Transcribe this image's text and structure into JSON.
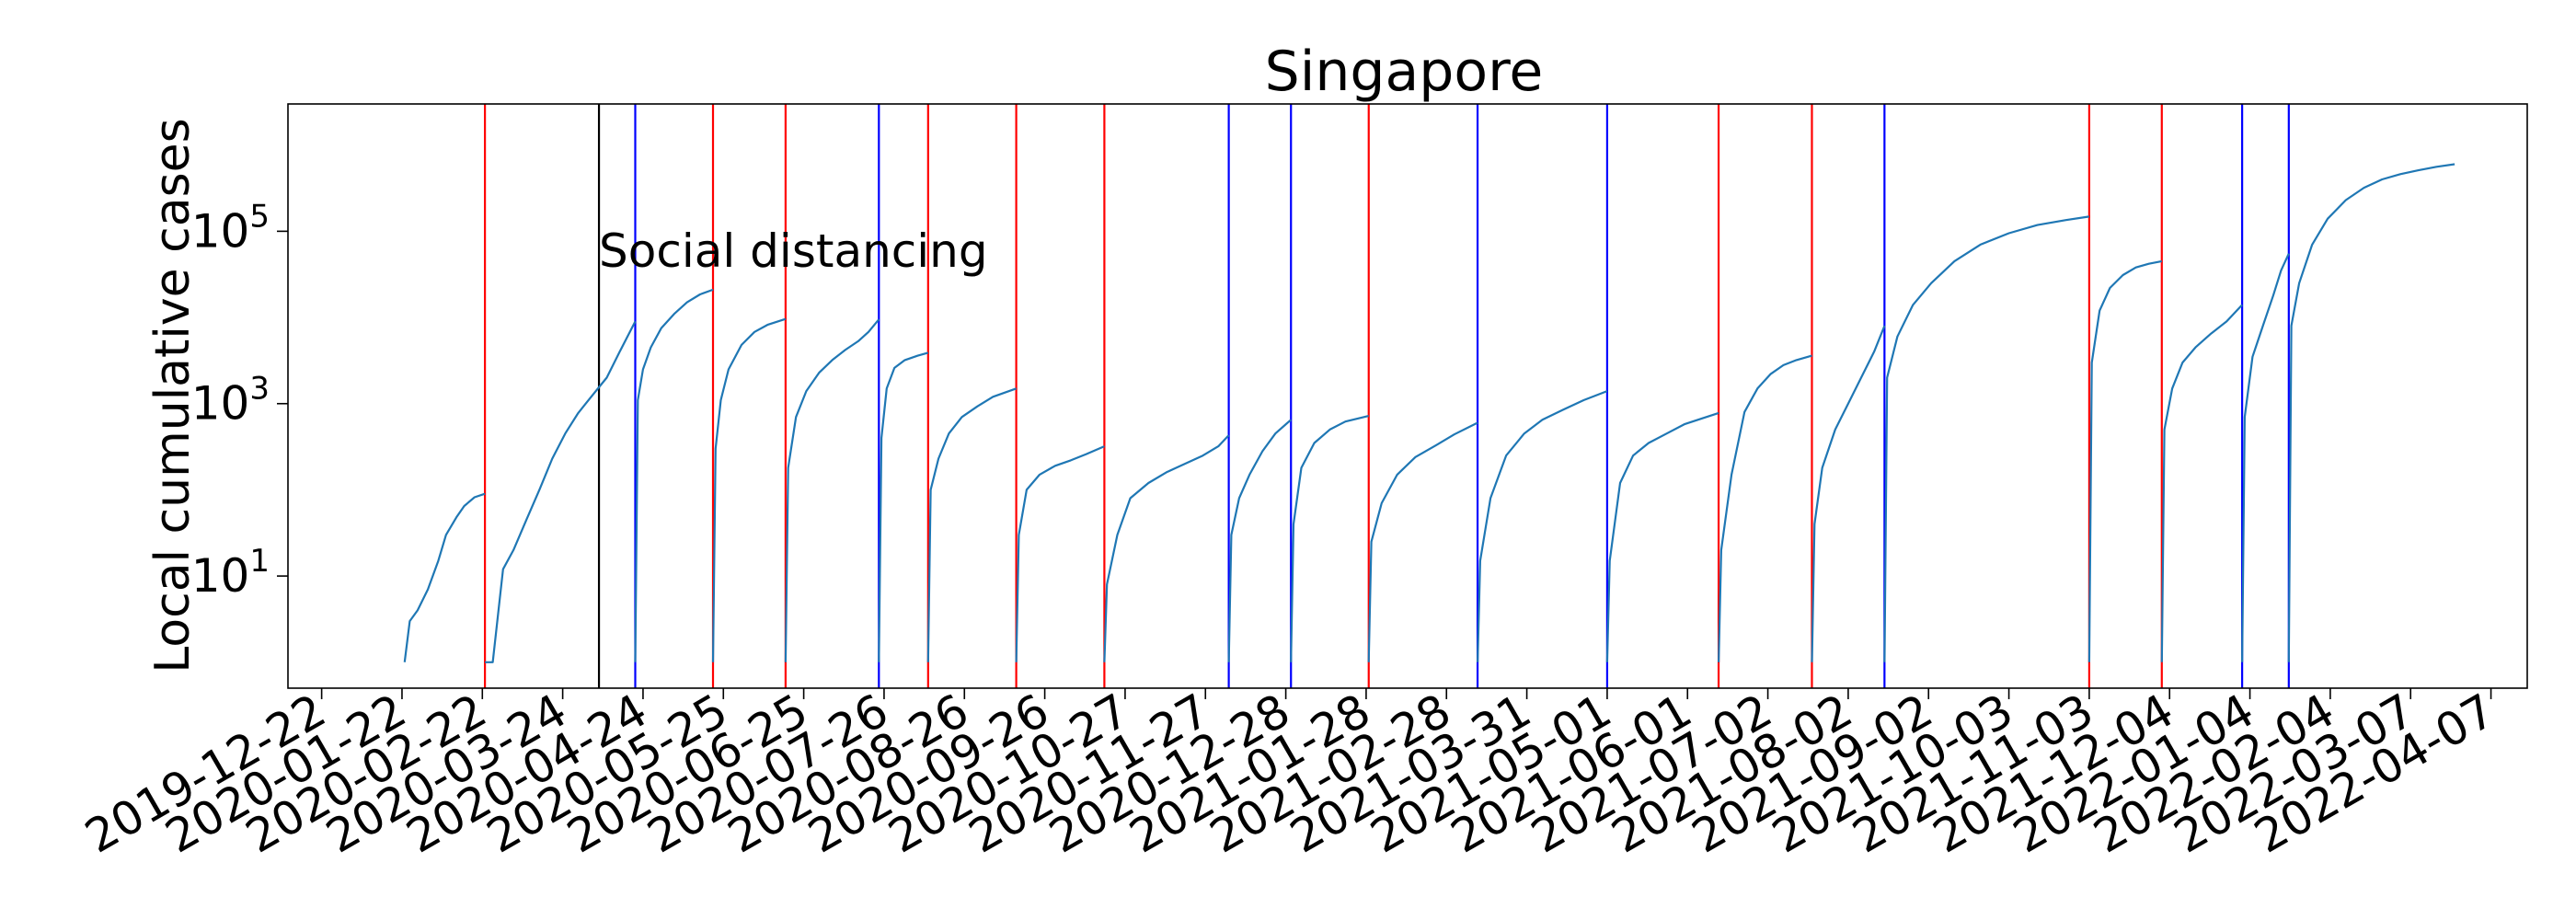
{
  "chart_data": {
    "type": "line",
    "title": "Singapore",
    "xlabel": "",
    "ylabel": "Local cumulative cases",
    "y_scale": "log",
    "y_ticks": [
      {
        "value": 10,
        "base": "10",
        "exp": "1"
      },
      {
        "value": 1000,
        "base": "10",
        "exp": "3"
      },
      {
        "value": 100000,
        "base": "10",
        "exp": "5"
      }
    ],
    "ylim": [
      0.5,
      3000000
    ],
    "xlim": [
      "2019-12-09",
      "2022-04-21"
    ],
    "x_ticks": [
      "2019-12-22",
      "2020-01-22",
      "2020-02-22",
      "2020-03-24",
      "2020-04-24",
      "2020-05-25",
      "2020-06-25",
      "2020-07-26",
      "2020-08-26",
      "2020-09-26",
      "2020-10-27",
      "2020-11-27",
      "2020-12-28",
      "2021-01-28",
      "2021-02-28",
      "2021-03-31",
      "2021-05-01",
      "2021-06-01",
      "2021-07-02",
      "2021-08-02",
      "2021-09-02",
      "2021-10-03",
      "2021-11-03",
      "2021-12-04",
      "2022-01-04",
      "2022-02-04",
      "2022-03-07",
      "2022-04-07"
    ],
    "grid": false,
    "line_color": "#1f77b4",
    "vertical_lines": [
      {
        "date": "2020-02-23",
        "color": "#ff0000"
      },
      {
        "date": "2020-04-07",
        "color": "#000000"
      },
      {
        "date": "2020-04-21",
        "color": "#0000ff"
      },
      {
        "date": "2020-05-21",
        "color": "#ff0000"
      },
      {
        "date": "2020-06-18",
        "color": "#ff0000"
      },
      {
        "date": "2020-07-24",
        "color": "#0000ff"
      },
      {
        "date": "2020-08-12",
        "color": "#ff0000"
      },
      {
        "date": "2020-09-15",
        "color": "#ff0000"
      },
      {
        "date": "2020-10-19",
        "color": "#ff0000"
      },
      {
        "date": "2020-12-06",
        "color": "#0000ff"
      },
      {
        "date": "2020-12-30",
        "color": "#0000ff"
      },
      {
        "date": "2021-01-29",
        "color": "#ff0000"
      },
      {
        "date": "2021-03-12",
        "color": "#0000ff"
      },
      {
        "date": "2021-05-01",
        "color": "#0000ff"
      },
      {
        "date": "2021-06-13",
        "color": "#ff0000"
      },
      {
        "date": "2021-07-19",
        "color": "#ff0000"
      },
      {
        "date": "2021-08-16",
        "color": "#0000ff"
      },
      {
        "date": "2021-11-03",
        "color": "#ff0000"
      },
      {
        "date": "2021-12-01",
        "color": "#ff0000"
      },
      {
        "date": "2022-01-01",
        "color": "#0000ff"
      },
      {
        "date": "2022-01-19",
        "color": "#0000ff"
      }
    ],
    "annotation": {
      "text": "Social distancing",
      "date": "2020-04-07",
      "value": 60000
    },
    "segments": [
      {
        "x": [
          "2020-01-23",
          "2020-01-25",
          "2020-01-28",
          "2020-02-01",
          "2020-02-05",
          "2020-02-08",
          "2020-02-12",
          "2020-02-15",
          "2020-02-19",
          "2020-02-23"
        ],
        "y": [
          1,
          3,
          4,
          7,
          15,
          30,
          48,
          65,
          82,
          90
        ]
      },
      {
        "x": [
          "2020-02-23",
          "2020-02-26",
          "2020-03-01",
          "2020-03-05",
          "2020-03-10",
          "2020-03-15",
          "2020-03-20",
          "2020-03-25",
          "2020-03-30",
          "2020-04-04",
          "2020-04-10",
          "2020-04-15",
          "2020-04-21"
        ],
        "y": [
          1,
          1,
          12,
          20,
          45,
          100,
          230,
          450,
          780,
          1200,
          2000,
          4000,
          9000
        ]
      },
      {
        "x": [
          "2020-04-21",
          "2020-04-22",
          "2020-04-24",
          "2020-04-27",
          "2020-05-01",
          "2020-05-06",
          "2020-05-11",
          "2020-05-16",
          "2020-05-21"
        ],
        "y": [
          1,
          1100,
          2500,
          4500,
          7500,
          11000,
          15000,
          18500,
          21000
        ]
      },
      {
        "x": [
          "2020-05-21",
          "2020-05-22",
          "2020-05-24",
          "2020-05-27",
          "2020-06-01",
          "2020-06-06",
          "2020-06-11",
          "2020-06-18"
        ],
        "y": [
          1,
          300,
          1100,
          2500,
          4800,
          6800,
          8200,
          9600
        ]
      },
      {
        "x": [
          "2020-06-18",
          "2020-06-19",
          "2020-06-22",
          "2020-06-26",
          "2020-07-01",
          "2020-07-06",
          "2020-07-11",
          "2020-07-16",
          "2020-07-20",
          "2020-07-24"
        ],
        "y": [
          1,
          180,
          700,
          1400,
          2300,
          3200,
          4200,
          5300,
          6800,
          9500
        ]
      },
      {
        "x": [
          "2020-07-24",
          "2020-07-25",
          "2020-07-27",
          "2020-07-30",
          "2020-08-03",
          "2020-08-08",
          "2020-08-12"
        ],
        "y": [
          1,
          400,
          1500,
          2600,
          3200,
          3600,
          3900
        ]
      },
      {
        "x": [
          "2020-08-12",
          "2020-08-13",
          "2020-08-16",
          "2020-08-20",
          "2020-08-25",
          "2020-08-31",
          "2020-09-06",
          "2020-09-15"
        ],
        "y": [
          1,
          100,
          230,
          450,
          700,
          930,
          1200,
          1500
        ]
      },
      {
        "x": [
          "2020-09-15",
          "2020-09-16",
          "2020-09-19",
          "2020-09-24",
          "2020-09-30",
          "2020-10-06",
          "2020-10-12",
          "2020-10-19"
        ],
        "y": [
          1,
          30,
          100,
          150,
          190,
          220,
          260,
          320
        ]
      },
      {
        "x": [
          "2020-10-19",
          "2020-10-20",
          "2020-10-24",
          "2020-10-29",
          "2020-11-05",
          "2020-11-12",
          "2020-11-19",
          "2020-11-26",
          "2020-12-02",
          "2020-12-06"
        ],
        "y": [
          1,
          8,
          30,
          80,
          120,
          160,
          200,
          250,
          320,
          430
        ]
      },
      {
        "x": [
          "2020-12-06",
          "2020-12-07",
          "2020-12-10",
          "2020-12-14",
          "2020-12-19",
          "2020-12-24",
          "2020-12-30"
        ],
        "y": [
          1,
          30,
          80,
          150,
          280,
          450,
          650
        ]
      },
      {
        "x": [
          "2020-12-30",
          "2020-12-31",
          "2021-01-03",
          "2021-01-08",
          "2021-01-14",
          "2021-01-20",
          "2021-01-29"
        ],
        "y": [
          1,
          40,
          180,
          350,
          500,
          620,
          720
        ]
      },
      {
        "x": [
          "2021-01-29",
          "2021-01-30",
          "2021-02-03",
          "2021-02-09",
          "2021-02-16",
          "2021-02-24",
          "2021-03-03",
          "2021-03-12"
        ],
        "y": [
          1,
          25,
          70,
          150,
          240,
          330,
          440,
          600
        ]
      },
      {
        "x": [
          "2021-03-12",
          "2021-03-13",
          "2021-03-17",
          "2021-03-23",
          "2021-03-30",
          "2021-04-06",
          "2021-04-14",
          "2021-04-22",
          "2021-05-01"
        ],
        "y": [
          1,
          15,
          80,
          250,
          450,
          650,
          850,
          1100,
          1400
        ]
      },
      {
        "x": [
          "2021-05-01",
          "2021-05-02",
          "2021-05-06",
          "2021-05-11",
          "2021-05-17",
          "2021-05-24",
          "2021-05-31",
          "2021-06-07",
          "2021-06-13"
        ],
        "y": [
          1,
          15,
          120,
          250,
          350,
          450,
          580,
          680,
          780
        ]
      },
      {
        "x": [
          "2021-06-13",
          "2021-06-14",
          "2021-06-18",
          "2021-06-23",
          "2021-06-28",
          "2021-07-03",
          "2021-07-08",
          "2021-07-13",
          "2021-07-19"
        ],
        "y": [
          1,
          20,
          150,
          800,
          1500,
          2200,
          2800,
          3200,
          3600
        ]
      },
      {
        "x": [
          "2021-07-19",
          "2021-07-20",
          "2021-07-23",
          "2021-07-28",
          "2021-08-02",
          "2021-08-07",
          "2021-08-12",
          "2021-08-16"
        ],
        "y": [
          1,
          40,
          180,
          500,
          1000,
          2000,
          4000,
          8000
        ]
      },
      {
        "x": [
          "2021-08-16",
          "2021-08-17",
          "2021-08-21",
          "2021-08-27",
          "2021-09-03",
          "2021-09-12",
          "2021-09-22",
          "2021-10-03",
          "2021-10-14",
          "2021-10-25",
          "2021-11-03"
        ],
        "y": [
          1,
          2000,
          6000,
          14000,
          25000,
          45000,
          70000,
          95000,
          118000,
          135000,
          148000
        ]
      },
      {
        "x": [
          "2021-11-03",
          "2021-11-04",
          "2021-11-07",
          "2021-11-11",
          "2021-11-16",
          "2021-11-21",
          "2021-11-26",
          "2021-12-01"
        ],
        "y": [
          1,
          3000,
          12000,
          22000,
          31000,
          38000,
          42000,
          45000
        ]
      },
      {
        "x": [
          "2021-12-01",
          "2021-12-02",
          "2021-12-05",
          "2021-12-09",
          "2021-12-14",
          "2021-12-20",
          "2021-12-26",
          "2022-01-01"
        ],
        "y": [
          1,
          500,
          1500,
          3000,
          4500,
          6500,
          9000,
          14000
        ]
      },
      {
        "x": [
          "2022-01-01",
          "2022-01-02",
          "2022-01-05",
          "2022-01-09",
          "2022-01-13",
          "2022-01-16",
          "2022-01-19"
        ],
        "y": [
          1,
          700,
          3500,
          8000,
          18000,
          35000,
          55000
        ]
      },
      {
        "x": [
          "2022-01-19",
          "2022-01-20",
          "2022-01-23",
          "2022-01-28",
          "2022-02-03",
          "2022-02-10",
          "2022-02-17",
          "2022-02-24",
          "2022-03-03",
          "2022-03-10",
          "2022-03-17",
          "2022-03-24"
        ],
        "y": [
          1,
          8000,
          25000,
          70000,
          140000,
          230000,
          320000,
          400000,
          460000,
          510000,
          560000,
          600000
        ]
      }
    ]
  }
}
